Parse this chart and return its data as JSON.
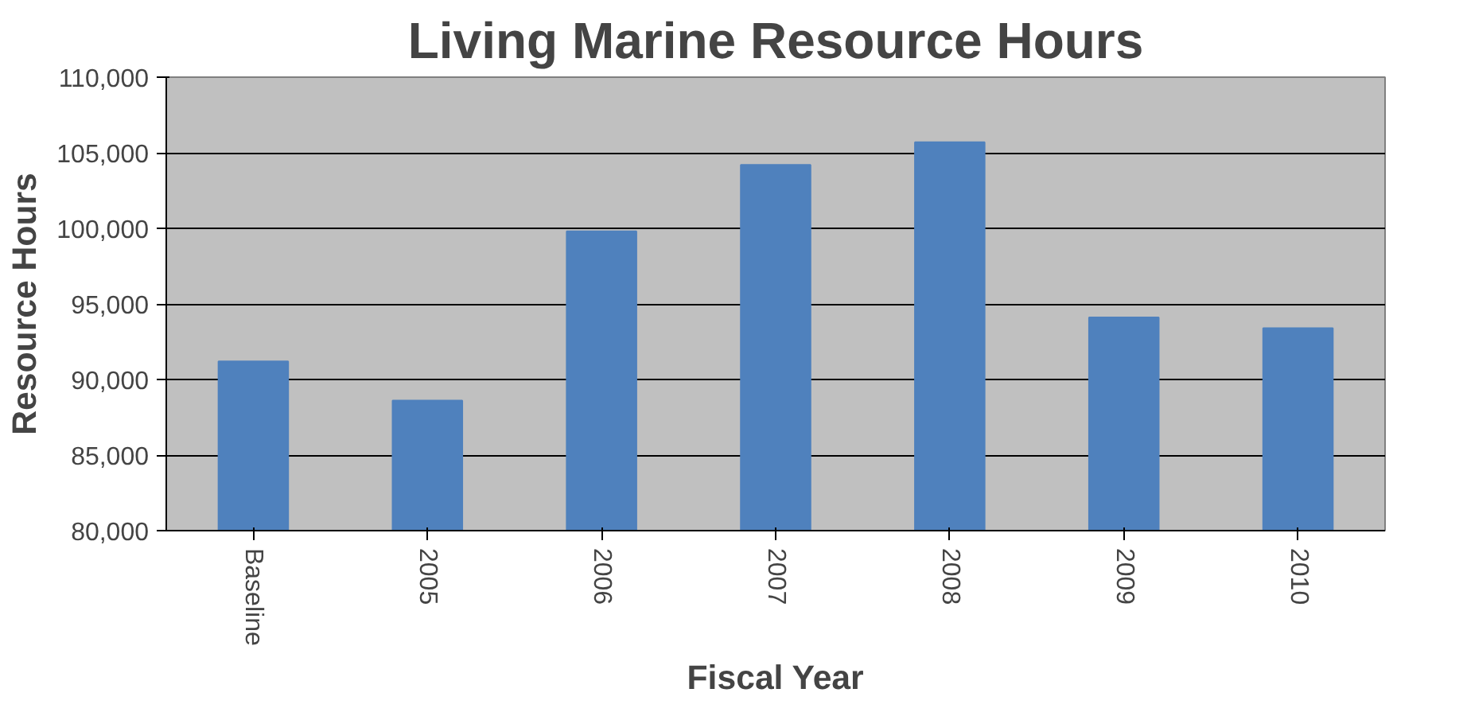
{
  "chart_data": {
    "type": "bar",
    "title": "Living Marine Resource Hours",
    "xlabel": "Fiscal Year",
    "ylabel": "Resource Hours",
    "categories": [
      "Baseline",
      "2005",
      "2006",
      "2007",
      "2008",
      "2009",
      "2010"
    ],
    "values": [
      91200,
      88600,
      99800,
      104200,
      105700,
      94100,
      93400
    ],
    "color": "#4f81bd",
    "ylim": [
      80000,
      110000
    ],
    "yticks": [
      {
        "value": 80000,
        "label": "80,000"
      },
      {
        "value": 85000,
        "label": "85,000"
      },
      {
        "value": 90000,
        "label": "90,000"
      },
      {
        "value": 95000,
        "label": "95,000"
      },
      {
        "value": 100000,
        "label": "100,000"
      },
      {
        "value": 105000,
        "label": "105,000"
      },
      {
        "value": 110000,
        "label": "110,000"
      }
    ],
    "grid": "y"
  }
}
